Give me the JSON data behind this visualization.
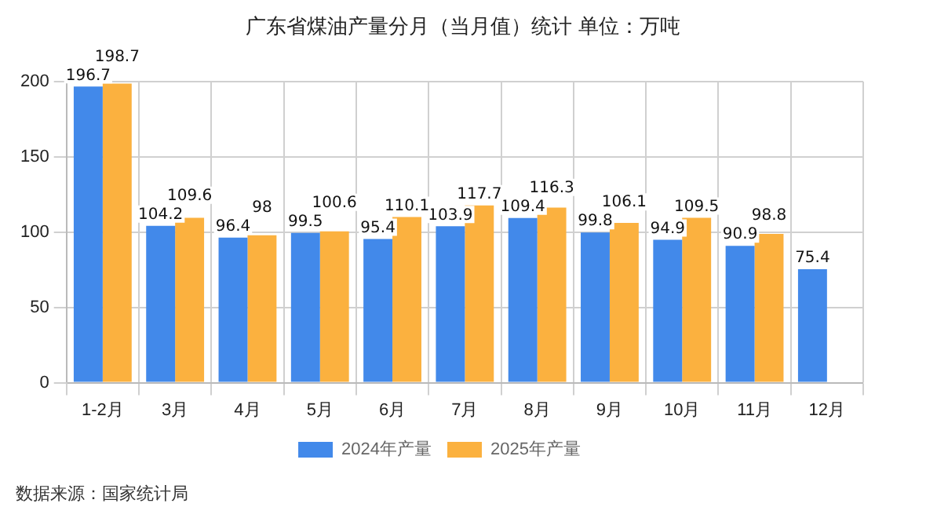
{
  "chart_data": {
    "type": "bar",
    "title": "广东省煤油产量分月（当月值）统计  单位：万吨",
    "categories": [
      "1-2月",
      "3月",
      "4月",
      "5月",
      "6月",
      "7月",
      "8月",
      "9月",
      "10月",
      "11月",
      "12月"
    ],
    "series": [
      {
        "name": "2024年产量",
        "color": "#4289ea",
        "values": [
          196.7,
          104.2,
          96.4,
          99.5,
          95.4,
          103.9,
          109.4,
          99.8,
          94.9,
          90.9,
          75.4
        ]
      },
      {
        "name": "2025年产量",
        "color": "#fbb13f",
        "values": [
          198.7,
          109.6,
          98,
          100.6,
          110.1,
          117.7,
          116.3,
          106.1,
          109.5,
          98.8,
          null
        ]
      }
    ],
    "ylim": [
      0,
      200
    ],
    "yticks": [
      0,
      50,
      100,
      150,
      200
    ],
    "grid": true,
    "legend": "bottom",
    "data_labels": true,
    "annotations": [
      "数据来源：国家统计局"
    ]
  }
}
